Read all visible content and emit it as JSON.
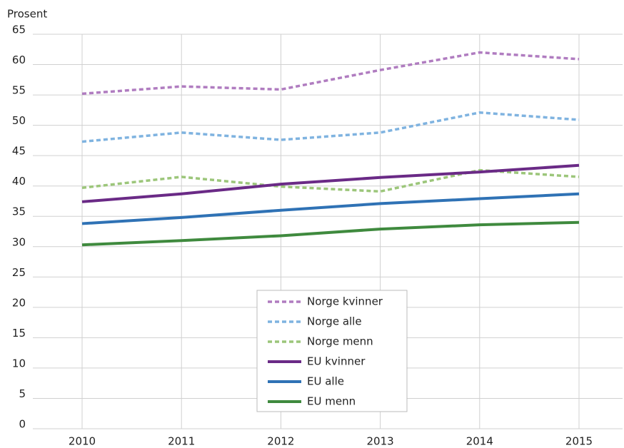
{
  "chart_data": {
    "type": "line",
    "y_label": "Prosent",
    "categories": [
      "2010",
      "2011",
      "2012",
      "2013",
      "2014",
      "2015"
    ],
    "ylim": [
      0,
      65
    ],
    "yticks": [
      0,
      5,
      10,
      15,
      20,
      25,
      30,
      35,
      40,
      45,
      50,
      55,
      60,
      65
    ],
    "grid": true,
    "legend": "bottom-center",
    "series": [
      {
        "name": "Norge kvinner",
        "color": "#b07cc0",
        "dashed": true,
        "values": [
          55.2,
          56.4,
          55.9,
          59.1,
          62.0,
          60.9
        ]
      },
      {
        "name": "Norge alle",
        "color": "#7fb3e0",
        "dashed": true,
        "values": [
          47.3,
          48.8,
          47.6,
          48.8,
          52.1,
          50.9
        ]
      },
      {
        "name": "Norge menn",
        "color": "#9cc67a",
        "dashed": true,
        "values": [
          39.7,
          41.5,
          39.9,
          39.1,
          42.6,
          41.5
        ]
      },
      {
        "name": "EU kvinner",
        "color": "#6a2a86",
        "dashed": false,
        "values": [
          37.4,
          38.7,
          40.3,
          41.4,
          42.3,
          43.4
        ]
      },
      {
        "name": "EU alle",
        "color": "#2f72b5",
        "dashed": false,
        "values": [
          33.8,
          34.8,
          36.0,
          37.1,
          37.9,
          38.7
        ]
      },
      {
        "name": "EU menn",
        "color": "#3f8a3e",
        "dashed": false,
        "values": [
          30.3,
          31.0,
          31.8,
          32.9,
          33.6,
          34.0
        ]
      }
    ]
  }
}
